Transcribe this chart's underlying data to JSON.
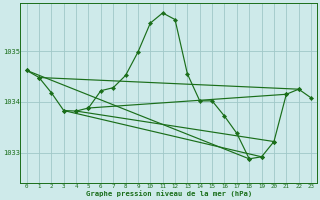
{
  "line_color": "#1a6e1a",
  "marker_color": "#1a6e1a",
  "bg_color": "#ceeaea",
  "grid_color": "#a0c8c8",
  "title": "Graphe pression niveau de la mer (hPa)",
  "yticks": [
    1033,
    1034,
    1035
  ],
  "ylim": [
    1032.4,
    1035.95
  ],
  "xlim": [
    -0.5,
    23.5
  ],
  "xticks": [
    0,
    1,
    2,
    3,
    4,
    5,
    6,
    7,
    8,
    9,
    10,
    11,
    12,
    13,
    14,
    15,
    16,
    17,
    18,
    19,
    20,
    21,
    22,
    23
  ],
  "series": [
    [
      1034.62,
      1034.48,
      1034.18,
      1033.83,
      1033.82,
      1033.88,
      1034.22,
      1034.28,
      1034.52,
      1034.98,
      1035.55,
      1035.75,
      1035.62,
      1034.55,
      1034.02,
      1034.02,
      1033.72,
      1033.38,
      1032.88,
      1032.92,
      1033.22,
      1034.15,
      1034.25,
      1034.08
    ],
    [
      1034.62,
      null,
      null,
      null,
      null,
      1033.88,
      null,
      null,
      null,
      null,
      null,
      null,
      null,
      null,
      null,
      null,
      null,
      null,
      1032.88,
      null,
      null,
      null,
      null,
      null
    ],
    [
      null,
      null,
      null,
      1033.83,
      null,
      null,
      null,
      null,
      null,
      null,
      null,
      null,
      null,
      null,
      null,
      null,
      null,
      null,
      null,
      1032.92,
      null,
      null,
      null,
      null
    ],
    [
      null,
      null,
      null,
      null,
      1033.82,
      null,
      null,
      null,
      null,
      null,
      null,
      null,
      null,
      null,
      null,
      null,
      null,
      null,
      null,
      null,
      1033.22,
      null,
      null,
      null
    ],
    [
      null,
      null,
      null,
      null,
      null,
      1033.88,
      null,
      null,
      null,
      null,
      null,
      null,
      null,
      null,
      null,
      null,
      null,
      null,
      null,
      null,
      null,
      1034.15,
      null,
      null
    ]
  ]
}
